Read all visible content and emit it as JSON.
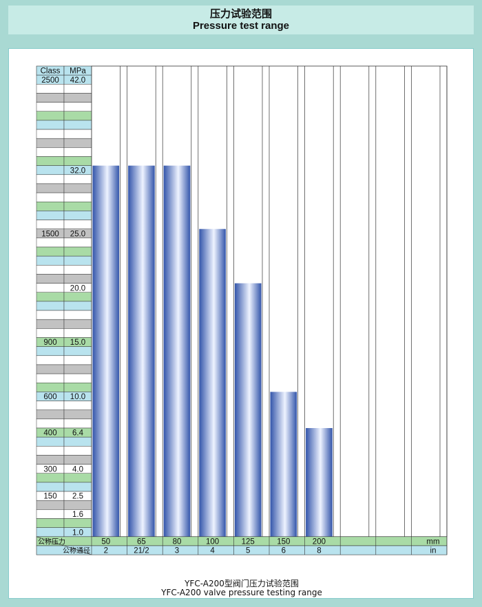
{
  "header": {
    "title_zh": "压力试验范围",
    "title_en": "Pressure test range"
  },
  "footer": {
    "caption_zh": "YFC-A200型阀门压力试验范围",
    "caption_en": "YFC-A200 valve pressure testing range"
  },
  "chart_data": {
    "type": "bar",
    "y_header_class": "Class",
    "y_header_mpa": "MPa",
    "y_axis_rows": [
      {
        "class": "2500",
        "mpa": "42.0"
      },
      {
        "class": "",
        "mpa": ""
      },
      {
        "class": "",
        "mpa": ""
      },
      {
        "class": "",
        "mpa": ""
      },
      {
        "class": "",
        "mpa": ""
      },
      {
        "class": "",
        "mpa": ""
      },
      {
        "class": "",
        "mpa": ""
      },
      {
        "class": "",
        "mpa": ""
      },
      {
        "class": "",
        "mpa": ""
      },
      {
        "class": "",
        "mpa": ""
      },
      {
        "class": "",
        "mpa": "32.0"
      },
      {
        "class": "",
        "mpa": ""
      },
      {
        "class": "",
        "mpa": ""
      },
      {
        "class": "",
        "mpa": ""
      },
      {
        "class": "",
        "mpa": ""
      },
      {
        "class": "",
        "mpa": ""
      },
      {
        "class": "",
        "mpa": ""
      },
      {
        "class": "1500",
        "mpa": "25.0"
      },
      {
        "class": "",
        "mpa": ""
      },
      {
        "class": "",
        "mpa": ""
      },
      {
        "class": "",
        "mpa": ""
      },
      {
        "class": "",
        "mpa": ""
      },
      {
        "class": "",
        "mpa": ""
      },
      {
        "class": "",
        "mpa": "20.0"
      },
      {
        "class": "",
        "mpa": ""
      },
      {
        "class": "",
        "mpa": ""
      },
      {
        "class": "",
        "mpa": ""
      },
      {
        "class": "",
        "mpa": ""
      },
      {
        "class": "",
        "mpa": ""
      },
      {
        "class": "900",
        "mpa": "15.0"
      },
      {
        "class": "",
        "mpa": ""
      },
      {
        "class": "",
        "mpa": ""
      },
      {
        "class": "",
        "mpa": ""
      },
      {
        "class": "",
        "mpa": ""
      },
      {
        "class": "",
        "mpa": ""
      },
      {
        "class": "600",
        "mpa": "10.0"
      },
      {
        "class": "",
        "mpa": ""
      },
      {
        "class": "",
        "mpa": ""
      },
      {
        "class": "",
        "mpa": ""
      },
      {
        "class": "400",
        "mpa": "6.4"
      },
      {
        "class": "",
        "mpa": ""
      },
      {
        "class": "",
        "mpa": ""
      },
      {
        "class": "",
        "mpa": ""
      },
      {
        "class": "300",
        "mpa": "4.0"
      },
      {
        "class": "",
        "mpa": ""
      },
      {
        "class": "",
        "mpa": ""
      },
      {
        "class": "150",
        "mpa": "2.5"
      },
      {
        "class": "",
        "mpa": ""
      },
      {
        "class": "",
        "mpa": "1.6"
      },
      {
        "class": "",
        "mpa": ""
      },
      {
        "class": "",
        "mpa": "1.0"
      }
    ],
    "row_colors": [
      "#b9e3ee",
      "#ffffff",
      "#c2c2c2",
      "#ffffff",
      "#a9dba6"
    ],
    "x_label_pressure": "公称压力",
    "x_label_size": "公称通径",
    "columns": [
      {
        "mm": "50",
        "in": "2",
        "value_mpa": 32.0
      },
      {
        "mm": "65",
        "in": "21/2",
        "value_mpa": 32.0
      },
      {
        "mm": "80",
        "in": "3",
        "value_mpa": 32.0
      },
      {
        "mm": "100",
        "in": "4",
        "value_mpa": 25.0
      },
      {
        "mm": "125",
        "in": "5",
        "value_mpa": 20.0
      },
      {
        "mm": "150",
        "in": "6",
        "value_mpa": 10.0
      },
      {
        "mm": "200",
        "in": "8",
        "value_mpa": 6.4
      },
      {
        "mm": "",
        "in": "",
        "value_mpa": null
      },
      {
        "mm": "",
        "in": "",
        "value_mpa": null
      },
      {
        "mm": "",
        "in": "",
        "value_mpa": null
      }
    ],
    "unit_mm": "mm",
    "unit_in": "in",
    "bar_color_edge": "#3355aa",
    "bar_color_light": "#eef3ff"
  }
}
